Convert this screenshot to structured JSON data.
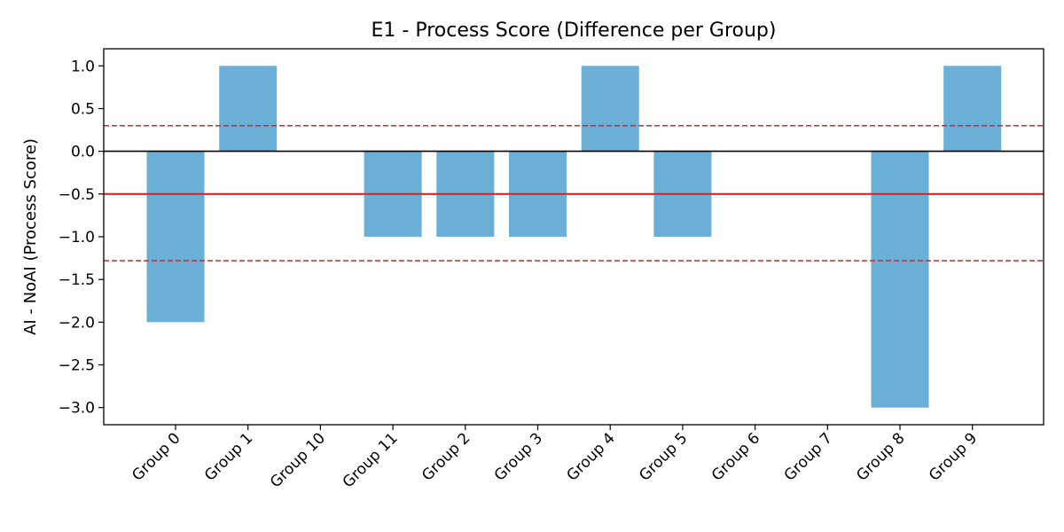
{
  "chart_data": {
    "type": "bar",
    "title": "E1 - Process Score (Difference per Group)",
    "xlabel": "",
    "ylabel": "AI - NoAI (Process Score)",
    "categories": [
      "Group 0",
      "Group 1",
      "Group 10",
      "Group 11",
      "Group 2",
      "Group 3",
      "Group 4",
      "Group 5",
      "Group 6",
      "Group 7",
      "Group 8",
      "Group 9"
    ],
    "values": [
      -2,
      1,
      0,
      -1,
      -1,
      -1,
      1,
      -1,
      0,
      0,
      -3,
      1
    ],
    "ylim": [
      -3.2,
      1.2
    ],
    "yticks": [
      1.0,
      0.5,
      0.0,
      -0.5,
      -1.0,
      -1.5,
      -2.0,
      -2.5,
      -3.0
    ],
    "ytick_labels": [
      "1.0",
      "0.5",
      "0.0",
      "−0.5",
      "−1.0",
      "−1.5",
      "−2.0",
      "−2.5",
      "−3.0"
    ],
    "grid": false,
    "reference_lines": [
      {
        "name": "zero",
        "value": 0.0,
        "style": "solid",
        "color": "#000000"
      },
      {
        "name": "mean",
        "value": -0.5,
        "style": "solid",
        "color": "#d62728"
      },
      {
        "name": "upper-limit",
        "value": 0.3,
        "style": "dashed",
        "color": "#d62728"
      },
      {
        "name": "lower-limit",
        "value": -1.28,
        "style": "dashed",
        "color": "#d62728"
      }
    ],
    "bar_color": "#6baed6"
  }
}
